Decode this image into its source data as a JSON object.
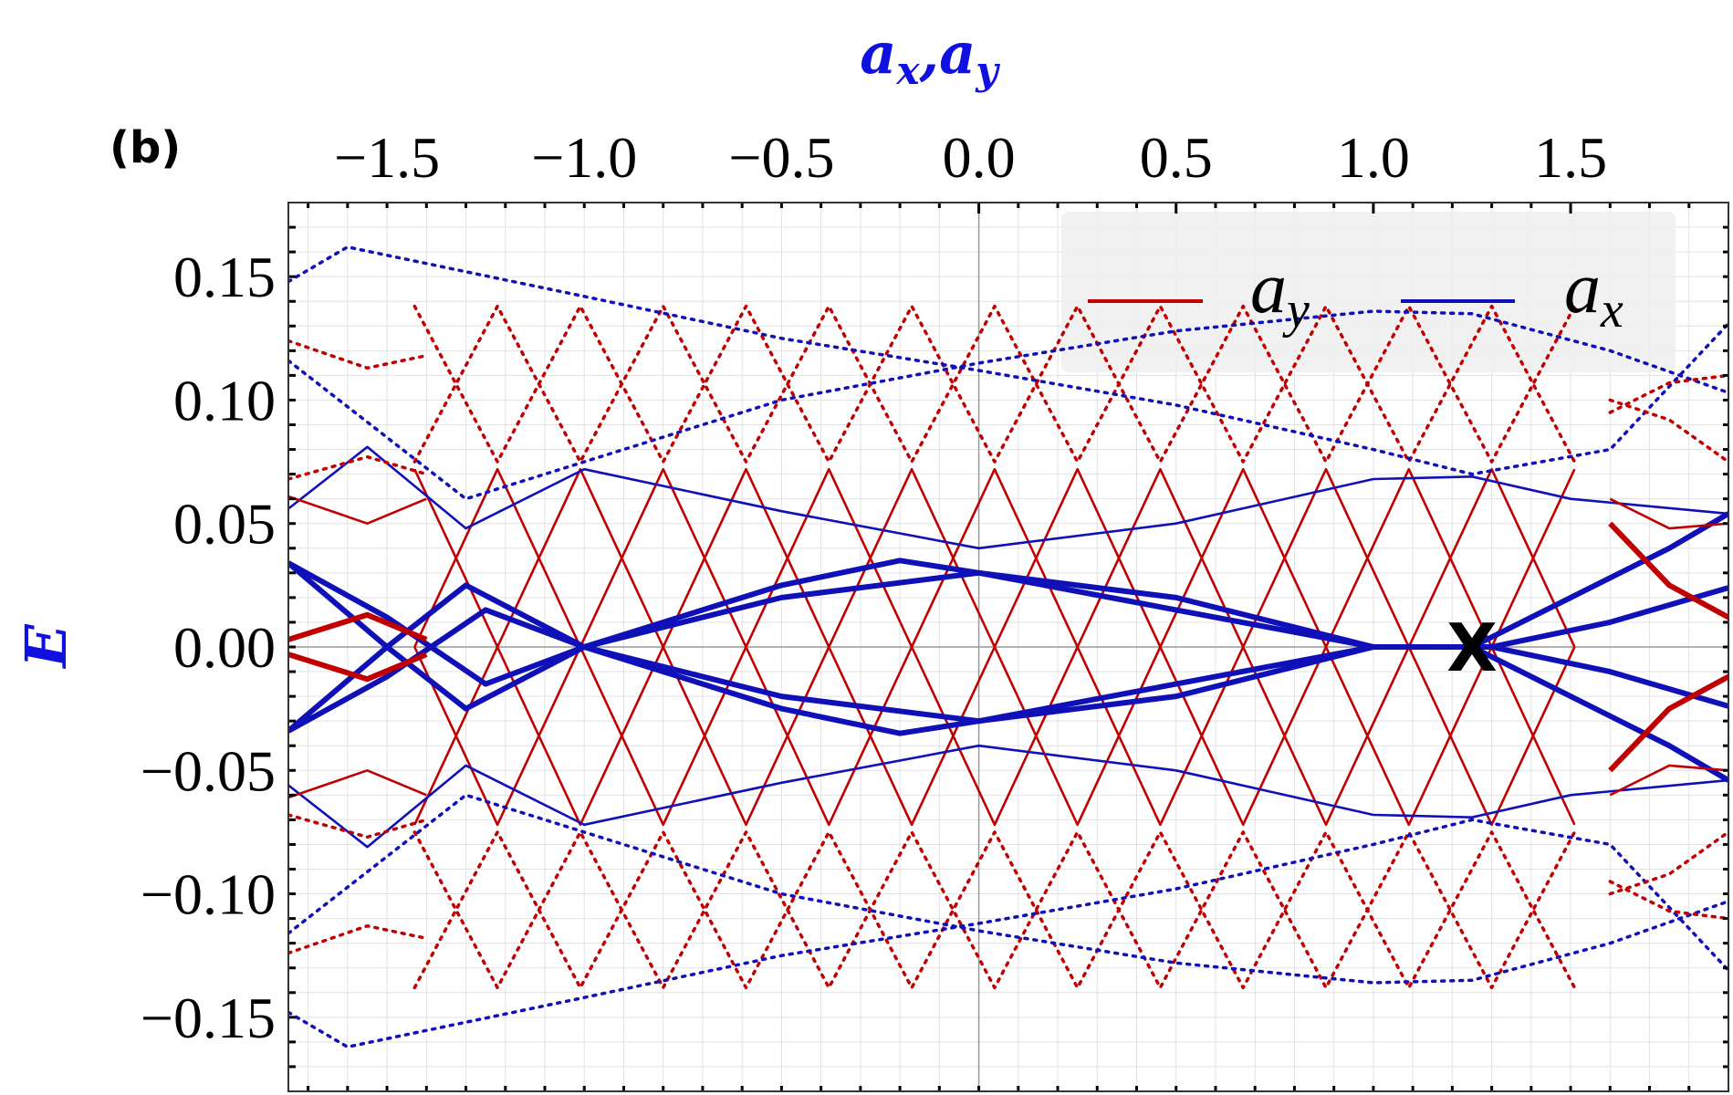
{
  "panel_label": "(b)",
  "colors": {
    "ay": "#c00000",
    "ax": "#1010b8",
    "axis_title": "#1010e0",
    "grid": "#e2e2e2",
    "legend_bg": "#efefef",
    "marker": "#000000"
  },
  "chart_data": {
    "type": "line",
    "title": "",
    "xlabel": {
      "base1": "a",
      "sub1": "x",
      "sep": ",",
      "base2": "a",
      "sub2": "y"
    },
    "ylabel": "E",
    "xlim": [
      -1.75,
      1.9
    ],
    "ylim": [
      -0.18,
      0.18
    ],
    "x_ticks": [
      -1.5,
      -1.0,
      -0.5,
      0.0,
      0.5,
      1.0,
      1.5
    ],
    "x_tick_labels": [
      "−1.5",
      "−1.0",
      "−0.5",
      "0.0",
      "0.5",
      "1.0",
      "1.5"
    ],
    "y_ticks": [
      0.15,
      0.1,
      0.05,
      0.0,
      -0.05,
      -0.1,
      -0.15
    ],
    "y_tick_labels": [
      "0.15",
      "0.10",
      "0.05",
      "0.00",
      "−0.05",
      "−0.10",
      "−0.15"
    ],
    "x_axis_position": "top",
    "grid": true,
    "legend_position": "top-right",
    "legend": [
      {
        "base": "a",
        "sub": "y",
        "color": "#c00000"
      },
      {
        "base": "a",
        "sub": "x",
        "color": "#1010b8"
      }
    ],
    "marker": {
      "label": "X",
      "x": 1.25,
      "y": 0.0
    },
    "series": [
      {
        "family": "ax",
        "style": "thick",
        "x": [
          -1.75,
          -1.5,
          -1.25,
          -1.0,
          -0.5,
          -0.2,
          0.0,
          0.5,
          1.0,
          1.2,
          1.3,
          1.6,
          1.9
        ],
        "y": [
          0.034,
          0.012,
          -0.015,
          0.0,
          0.025,
          0.035,
          0.03,
          0.015,
          0.0,
          0.0,
          0.0,
          -0.01,
          -0.024
        ]
      },
      {
        "family": "ax",
        "style": "thick",
        "x": [
          -1.75,
          -1.5,
          -1.25,
          -1.0,
          -0.5,
          -0.2,
          0.0,
          0.5,
          1.0,
          1.2,
          1.3,
          1.6,
          1.9
        ],
        "y": [
          -0.034,
          -0.012,
          0.015,
          0.0,
          -0.025,
          -0.035,
          -0.03,
          -0.015,
          0.0,
          0.0,
          0.0,
          0.01,
          0.024
        ]
      },
      {
        "family": "ax",
        "style": "thick",
        "x": [
          -1.75,
          -1.5,
          -1.3,
          -1.0,
          -0.5,
          0.0,
          0.5,
          1.0,
          1.25,
          1.5,
          1.75,
          1.9
        ],
        "y": [
          0.034,
          0.0,
          -0.025,
          0.0,
          0.02,
          0.03,
          0.02,
          0.0,
          0.0,
          0.02,
          0.04,
          0.054
        ]
      },
      {
        "family": "ax",
        "style": "thick",
        "x": [
          -1.75,
          -1.5,
          -1.3,
          -1.0,
          -0.5,
          0.0,
          0.5,
          1.0,
          1.25,
          1.5,
          1.75,
          1.9
        ],
        "y": [
          -0.034,
          0.0,
          0.025,
          0.0,
          -0.02,
          -0.03,
          -0.02,
          0.0,
          0.0,
          -0.02,
          -0.04,
          -0.054
        ]
      },
      {
        "family": "ax",
        "style": "thin",
        "x": [
          -1.75,
          -1.55,
          -1.3,
          -1.0,
          -0.5,
          0.0,
          0.5,
          1.0,
          1.25,
          1.5,
          1.9
        ],
        "y": [
          0.056,
          0.081,
          0.048,
          0.072,
          0.055,
          0.04,
          0.05,
          0.068,
          0.069,
          0.06,
          0.054
        ]
      },
      {
        "family": "ax",
        "style": "thin",
        "x": [
          -1.75,
          -1.55,
          -1.3,
          -1.0,
          -0.5,
          0.0,
          0.5,
          1.0,
          1.25,
          1.5,
          1.9
        ],
        "y": [
          -0.056,
          -0.081,
          -0.048,
          -0.072,
          -0.055,
          -0.04,
          -0.05,
          -0.068,
          -0.069,
          -0.06,
          -0.054
        ]
      },
      {
        "family": "ax",
        "style": "dotted",
        "x": [
          -1.75,
          -1.6,
          -1.0,
          -0.5,
          0.0,
          0.5,
          1.0,
          1.25,
          1.6,
          1.9
        ],
        "y": [
          0.148,
          0.162,
          0.142,
          0.125,
          0.112,
          0.098,
          0.08,
          0.07,
          0.08,
          0.131
        ]
      },
      {
        "family": "ax",
        "style": "dotted",
        "x": [
          -1.75,
          -1.6,
          -1.0,
          -0.5,
          0.0,
          0.5,
          1.0,
          1.25,
          1.6,
          1.9
        ],
        "y": [
          -0.148,
          -0.162,
          -0.142,
          -0.125,
          -0.112,
          -0.098,
          -0.08,
          -0.07,
          -0.08,
          -0.131
        ]
      },
      {
        "family": "ax",
        "style": "dotted",
        "x": [
          -1.75,
          -1.3,
          -1.0,
          -0.5,
          0.0,
          0.5,
          1.0,
          1.25,
          1.6,
          1.9
        ],
        "y": [
          0.116,
          0.06,
          0.075,
          0.1,
          0.115,
          0.128,
          0.136,
          0.135,
          0.12,
          0.103
        ]
      },
      {
        "family": "ax",
        "style": "dotted",
        "x": [
          -1.75,
          -1.3,
          -1.0,
          -0.5,
          0.0,
          0.5,
          1.0,
          1.25,
          1.6,
          1.9
        ],
        "y": [
          -0.116,
          -0.06,
          -0.075,
          -0.1,
          -0.115,
          -0.128,
          -0.136,
          -0.135,
          -0.12,
          -0.103
        ]
      },
      {
        "family": "ay",
        "style": "thick",
        "x": [
          -1.75,
          -1.55,
          -1.4
        ],
        "y": [
          0.003,
          0.013,
          0.003
        ]
      },
      {
        "family": "ay",
        "style": "thick",
        "x": [
          -1.75,
          -1.55,
          -1.4
        ],
        "y": [
          -0.003,
          -0.013,
          -0.003
        ]
      },
      {
        "family": "ay",
        "style": "thick",
        "x": [
          1.6,
          1.75,
          1.9
        ],
        "y": [
          0.05,
          0.025,
          0.012
        ]
      },
      {
        "family": "ay",
        "style": "thick",
        "x": [
          1.6,
          1.75,
          1.9
        ],
        "y": [
          -0.05,
          -0.025,
          -0.012
        ]
      },
      {
        "family": "ay",
        "style": "thin",
        "x": [
          -1.75,
          -1.55,
          -1.4
        ],
        "y": [
          0.061,
          0.05,
          0.06
        ]
      },
      {
        "family": "ay",
        "style": "thin",
        "x": [
          -1.75,
          -1.55,
          -1.4
        ],
        "y": [
          -0.061,
          -0.05,
          -0.06
        ]
      },
      {
        "family": "ay",
        "style": "thin",
        "x": [
          1.6,
          1.75,
          1.9
        ],
        "y": [
          0.06,
          0.048,
          0.05
        ]
      },
      {
        "family": "ay",
        "style": "thin",
        "x": [
          1.6,
          1.75,
          1.9
        ],
        "y": [
          -0.06,
          -0.048,
          -0.05
        ]
      },
      {
        "family": "ay",
        "style": "dotted",
        "x": [
          -1.75,
          -1.55,
          -1.4
        ],
        "y": [
          0.124,
          0.113,
          0.118
        ]
      },
      {
        "family": "ay",
        "style": "dotted",
        "x": [
          -1.75,
          -1.55,
          -1.4
        ],
        "y": [
          -0.124,
          -0.113,
          -0.118
        ]
      },
      {
        "family": "ay",
        "style": "dotted",
        "x": [
          -1.75,
          -1.55,
          -1.4
        ],
        "y": [
          0.068,
          0.077,
          0.07
        ]
      },
      {
        "family": "ay",
        "style": "dotted",
        "x": [
          -1.75,
          -1.55,
          -1.4
        ],
        "y": [
          -0.068,
          -0.077,
          -0.07
        ]
      },
      {
        "family": "ay",
        "style": "dotted",
        "x": [
          1.6,
          1.75,
          1.9
        ],
        "y": [
          0.1,
          0.092,
          0.075
        ]
      },
      {
        "family": "ay",
        "style": "dotted",
        "x": [
          1.6,
          1.75,
          1.9
        ],
        "y": [
          -0.1,
          -0.092,
          -0.075
        ]
      },
      {
        "family": "ay",
        "style": "dotted",
        "x": [
          1.6,
          1.75,
          1.9
        ],
        "y": [
          0.095,
          0.107,
          0.11
        ]
      },
      {
        "family": "ay",
        "style": "dotted",
        "x": [
          1.6,
          1.75,
          1.9
        ],
        "y": [
          -0.095,
          -0.107,
          -0.11
        ]
      }
    ],
    "zigzag_bands": [
      {
        "family": "ay",
        "style": "thin",
        "x_start": -1.43,
        "x_end": 1.6,
        "y_amplitude": 0.072,
        "y_trough": 0.0,
        "x_period": 0.42,
        "phase_shift": 0.21
      },
      {
        "family": "ay",
        "style": "thin",
        "x_start": -1.43,
        "x_end": 1.6,
        "y_amplitude": -0.072,
        "y_trough": 0.0,
        "x_period": 0.42,
        "phase_shift": 0.21
      },
      {
        "family": "ay",
        "style": "dotted",
        "x_start": -1.43,
        "x_end": 1.6,
        "y_amplitude": 0.138,
        "y_trough": 0.075,
        "x_period": 0.42,
        "phase_shift": 0.0
      },
      {
        "family": "ay",
        "style": "dotted",
        "x_start": -1.43,
        "x_end": 1.6,
        "y_amplitude": -0.138,
        "y_trough": -0.075,
        "x_period": 0.42,
        "phase_shift": 0.0
      }
    ]
  }
}
